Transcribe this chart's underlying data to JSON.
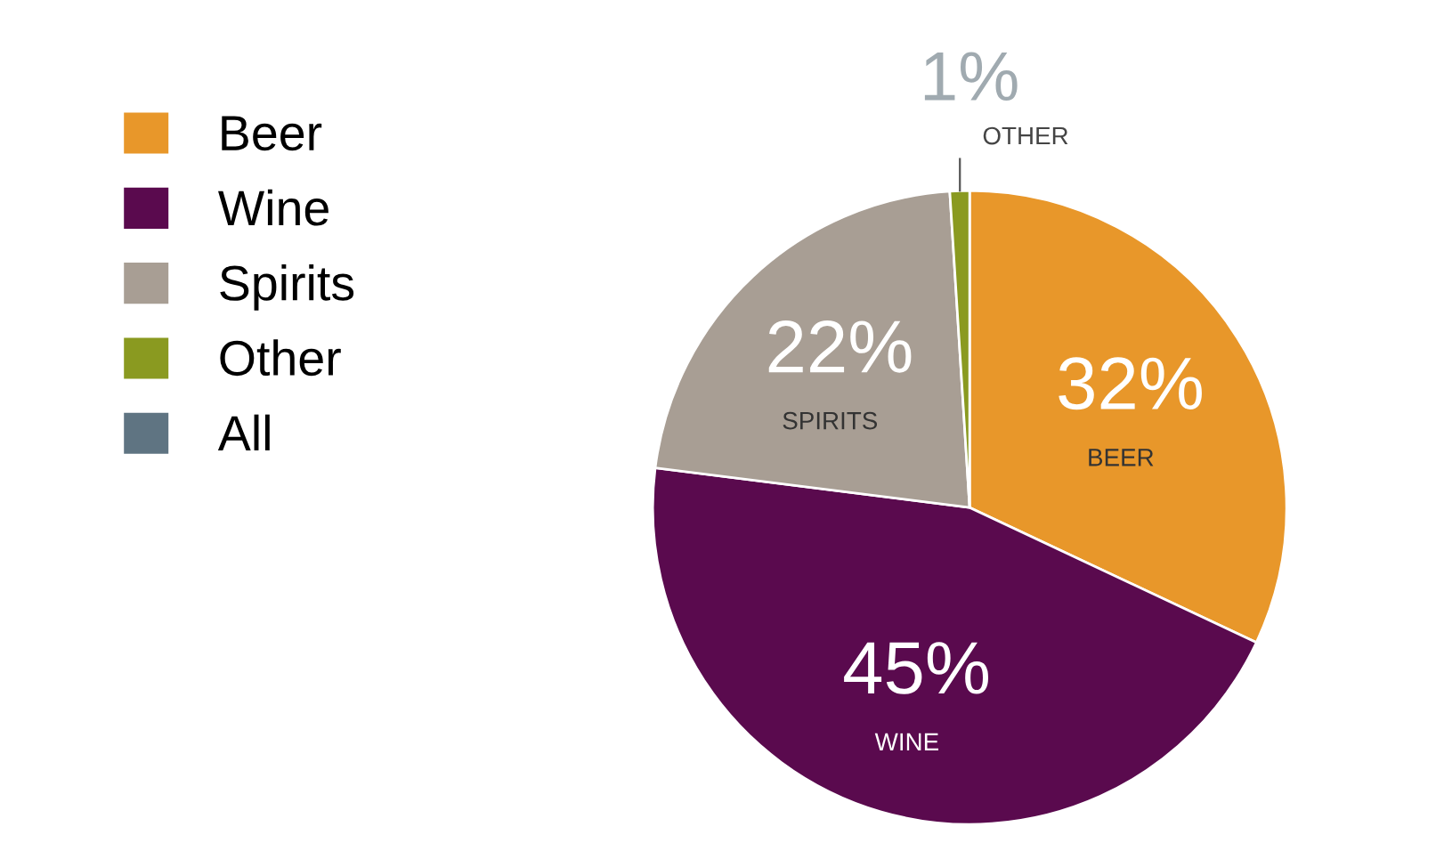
{
  "chart_data": {
    "type": "pie",
    "categories": [
      "Beer",
      "Wine",
      "Spirits",
      "Other",
      "All"
    ],
    "values": [
      32,
      45,
      22,
      1,
      0
    ],
    "colors": [
      "#e8972a",
      "#5a0a4e",
      "#a89e94",
      "#8a9a20",
      "#5f7482"
    ],
    "value_labels": [
      "32%",
      "45%",
      "22%",
      "1%",
      null
    ],
    "annotations": [
      "BEER",
      "WINE",
      "SPIRITS",
      "OTHER"
    ],
    "legend": "top left"
  }
}
